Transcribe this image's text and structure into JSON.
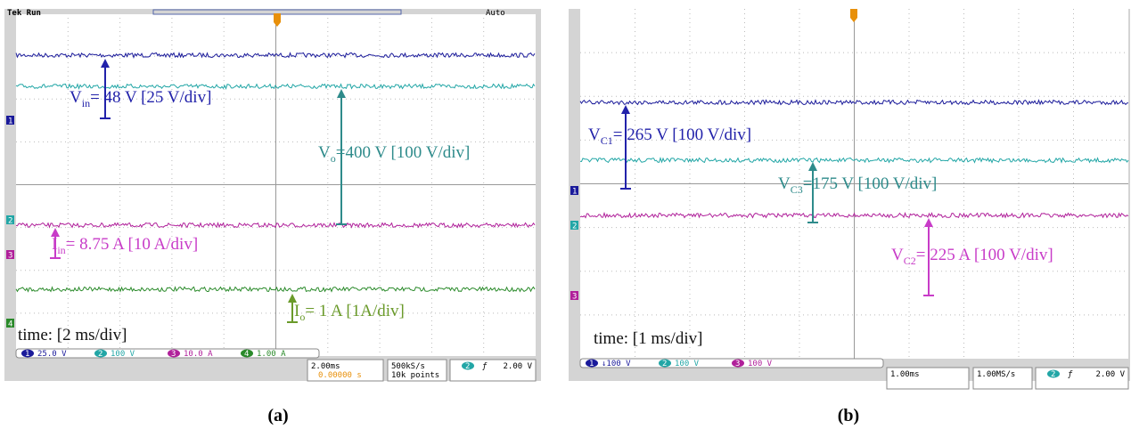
{
  "panels": [
    {
      "scope": {
        "status": "Tek Run",
        "trigger_mode": "Auto",
        "channels": [
          {
            "number": "1",
            "label": "25.0 V"
          },
          {
            "number": "2",
            "label": "100 V"
          },
          {
            "number": "3",
            "label": "10.0 A"
          },
          {
            "number": "4",
            "label": "1.00 A"
          }
        ],
        "timebase": "2.00ms",
        "trigger_time": "0.00000 s",
        "sample_rate": "500kS/s",
        "record_length": "10k points",
        "trigger": {
          "channel": "2",
          "level": "2.00 V"
        }
      },
      "annotations": [
        {
          "base": "V",
          "sub": "in",
          "rest": "= 48 V [25 V/div]"
        },
        {
          "base": "V",
          "sub": "o",
          "rest": "=400 V [100 V/div]"
        },
        {
          "base": "I",
          "sub": "in",
          "rest": "= 8.75 A [10 A/div]"
        },
        {
          "base": "I",
          "sub": "o",
          "rest": "= 1 A [1A/div]"
        }
      ],
      "time_label": "time: [2 ms/div]",
      "caption": "(a)"
    },
    {
      "scope": {
        "channels": [
          {
            "number": "1",
            "label": "↓100 V"
          },
          {
            "number": "2",
            "label": "100 V"
          },
          {
            "number": "3",
            "label": "100 V"
          }
        ],
        "timebase": "1.00ms",
        "sample_rate": "1.00MS/s",
        "trigger": {
          "channel": "2",
          "level": "2.00 V"
        }
      },
      "annotations": [
        {
          "base": "V",
          "sub": "C1",
          "rest": "= 265 V [100 V/div]"
        },
        {
          "base": "V",
          "sub": "C3",
          "rest": "=175 V [100 V/div]"
        },
        {
          "base": "V",
          "sub": "C2",
          "rest": "= 225 A [100 V/div]"
        }
      ],
      "time_label": "time: [1 ms/div]",
      "caption": "(b)"
    }
  ]
}
